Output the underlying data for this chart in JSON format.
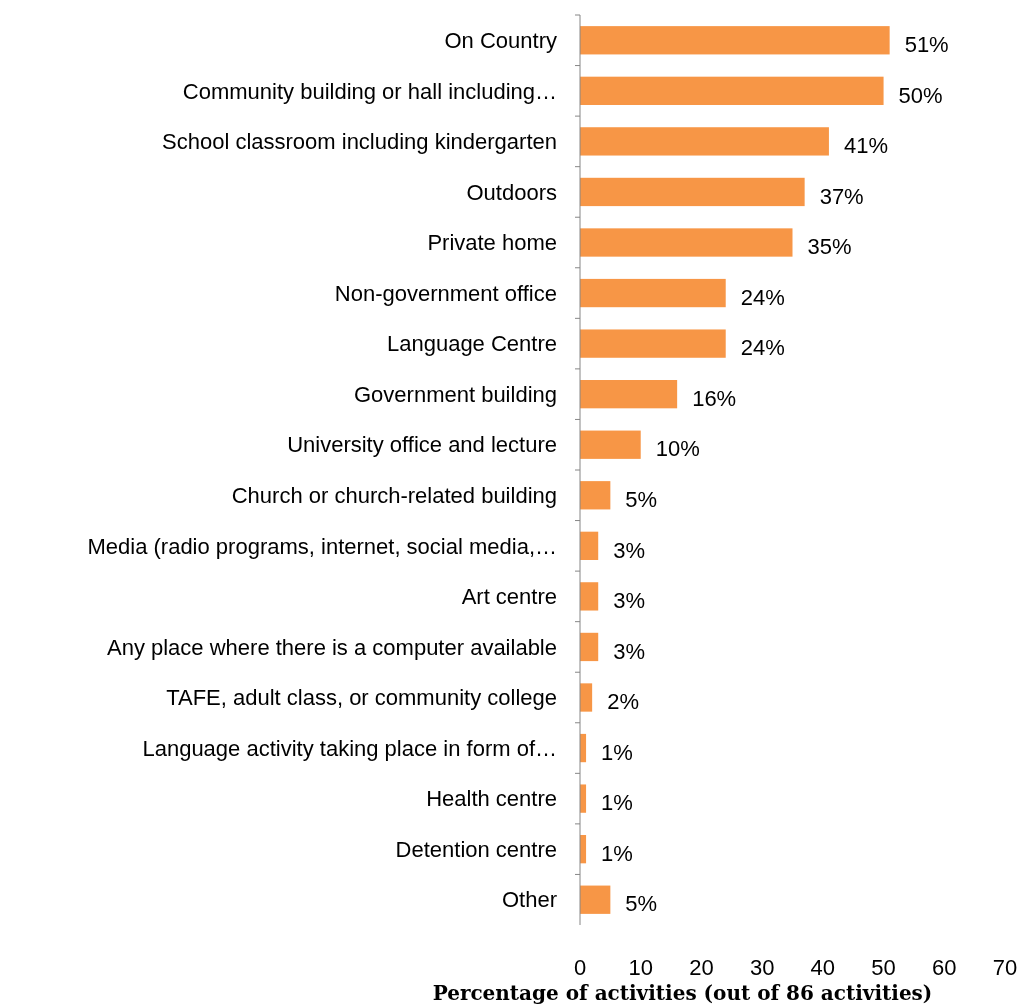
{
  "chart_data": {
    "type": "bar",
    "orientation": "horizontal",
    "xlabel": "Percentage of activities (out of 86 activities)",
    "categories": [
      "On Country",
      "Community building or hall including…",
      "School classroom including kindergarten",
      "Outdoors",
      "Private home",
      "Non-government office",
      "Language Centre",
      "Government building",
      "University office and lecture",
      "Church or church-related building",
      "Media (radio programs, internet, social media,…",
      "Art centre",
      "Any place where there is a computer available",
      "TAFE, adult class, or community college",
      "Language activity taking place in form of…",
      "Health centre",
      "Detention centre",
      "Other"
    ],
    "values": [
      51,
      50,
      41,
      37,
      35,
      24,
      24,
      16,
      10,
      5,
      3,
      3,
      3,
      2,
      1,
      1,
      1,
      5
    ],
    "value_labels": [
      "51%",
      "50%",
      "41%",
      "37%",
      "35%",
      "24%",
      "24%",
      "16%",
      "10%",
      "5%",
      "3%",
      "3%",
      "3%",
      "2%",
      "1%",
      "1%",
      "1%",
      "5%"
    ],
    "color": "#f79646",
    "xlim": [
      0,
      70
    ],
    "xticks": [
      0,
      10,
      20,
      30,
      40,
      50,
      60,
      70
    ],
    "grid": false
  }
}
